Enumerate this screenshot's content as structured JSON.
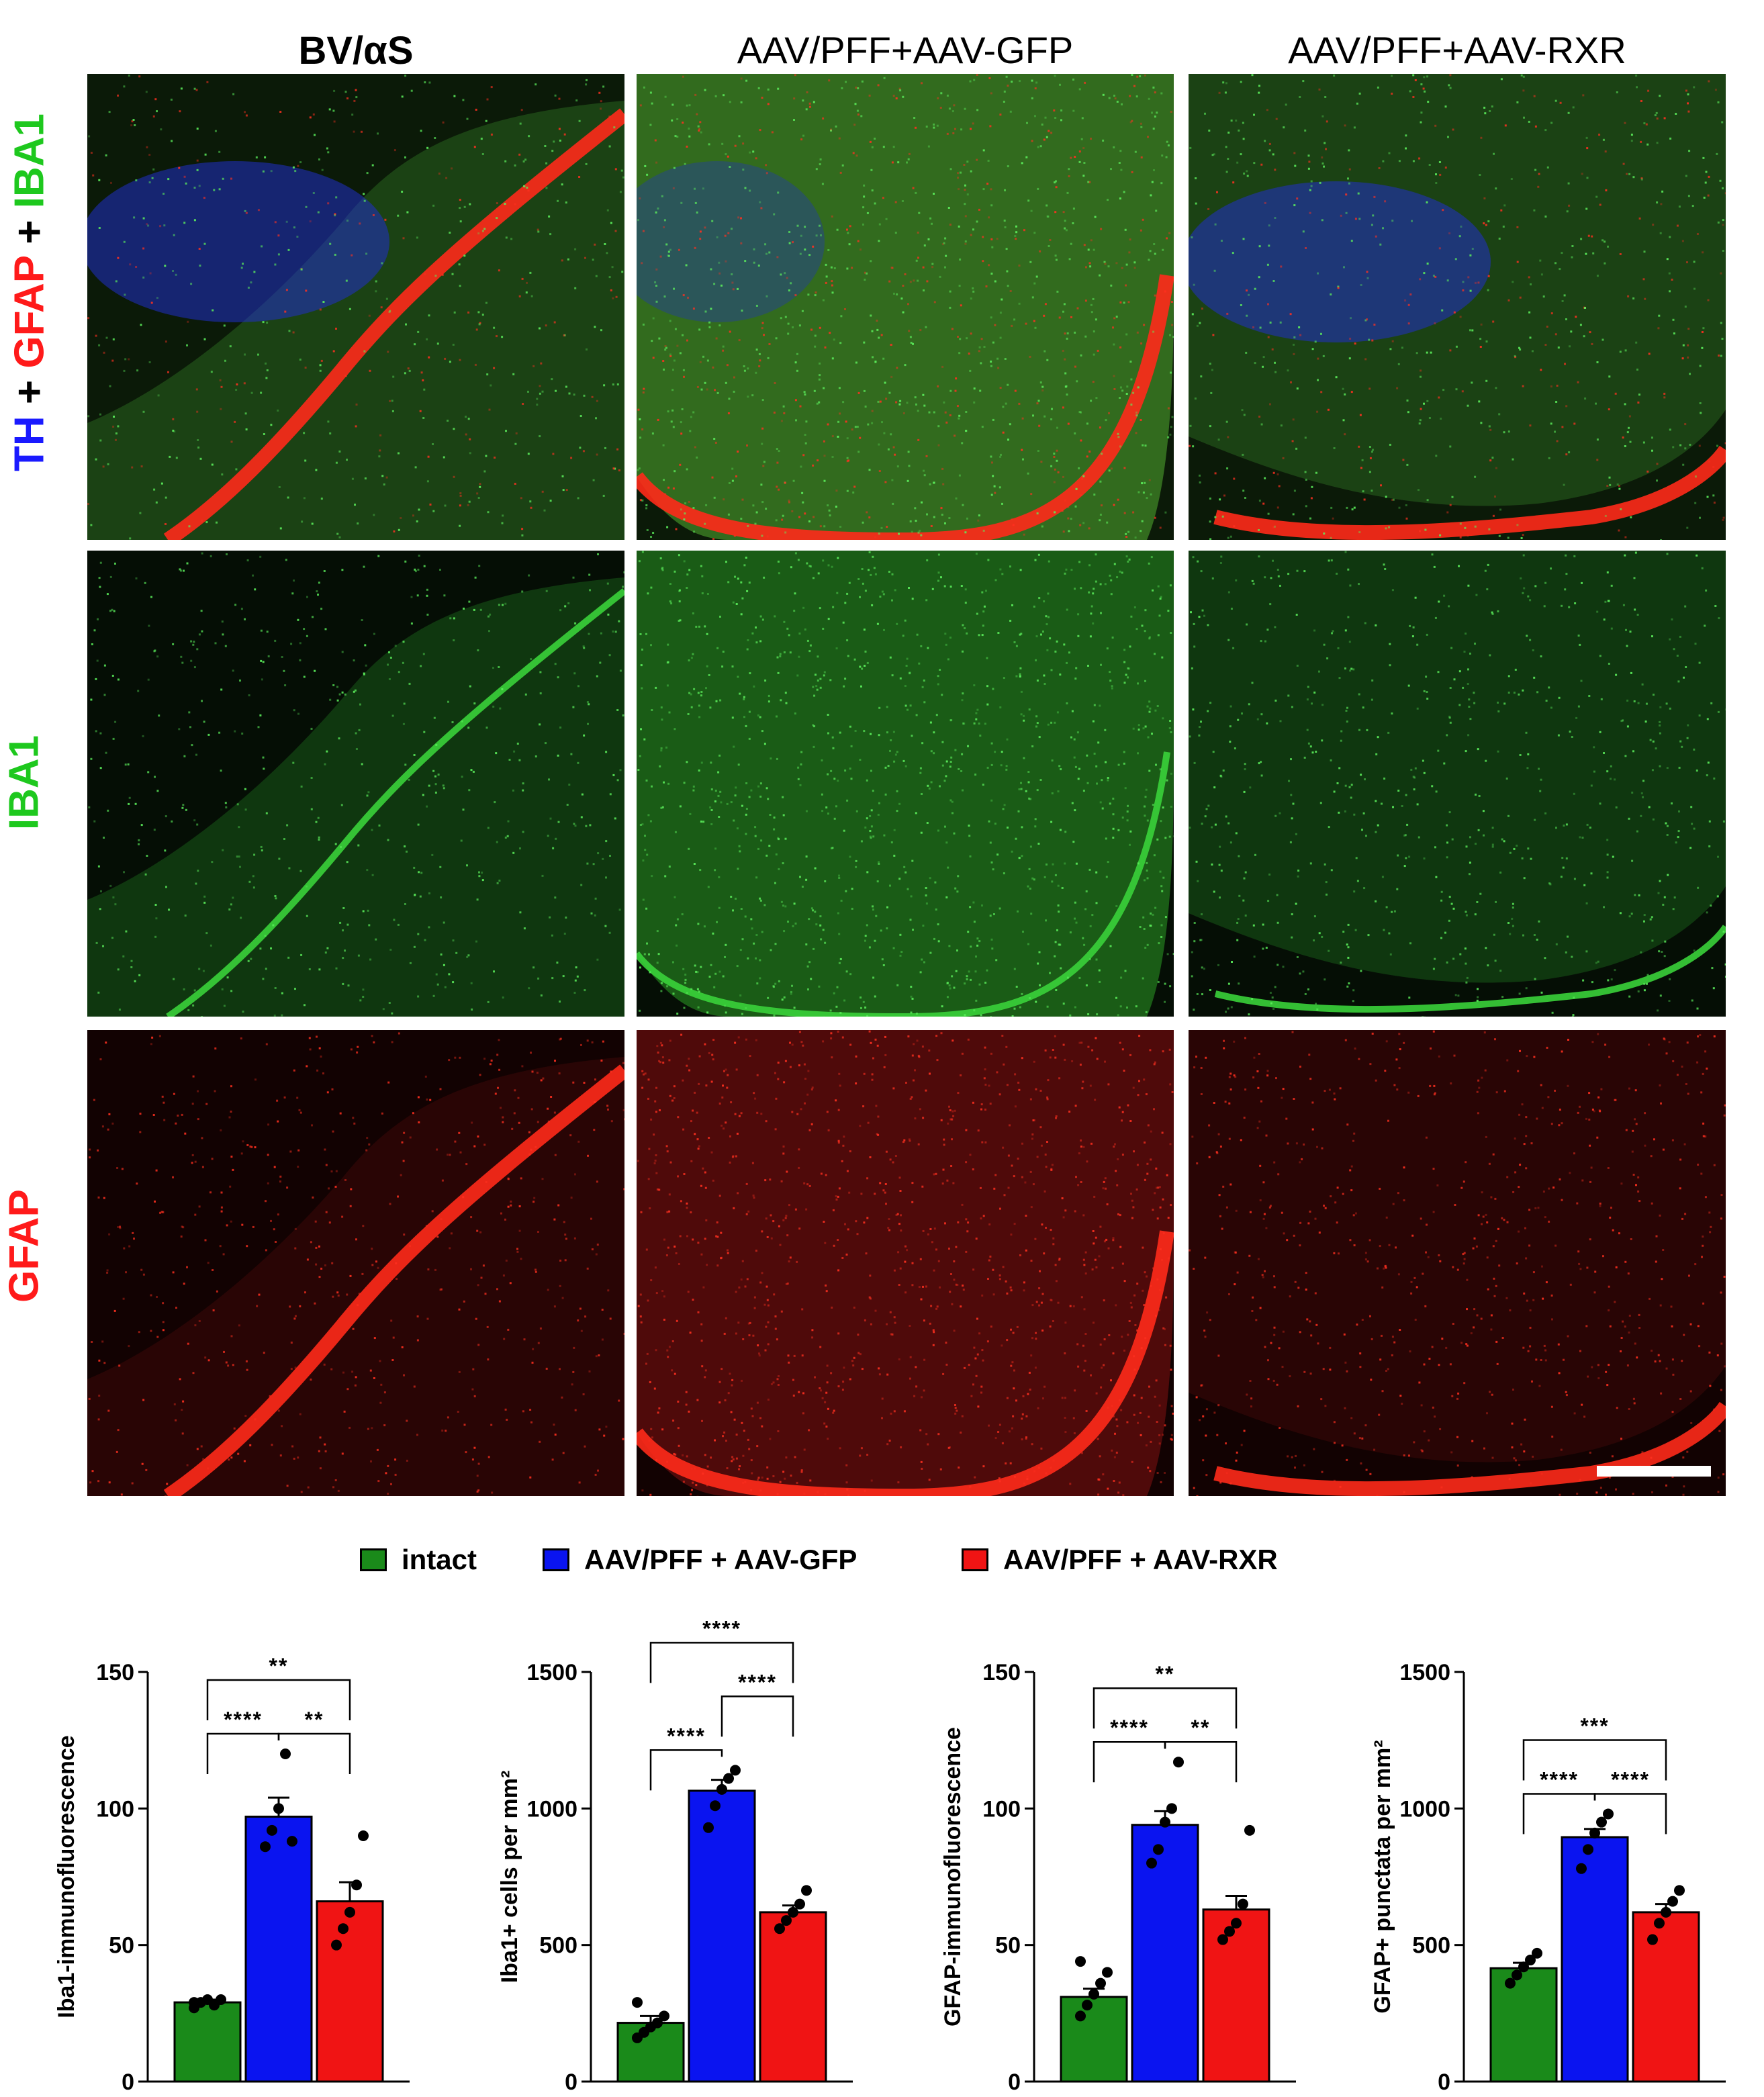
{
  "figure": {
    "columns": [
      "BV/αS",
      "AAV/PFF+AAV-GFP",
      "AAV/PFF+AAV-RXR"
    ],
    "rows": [
      {
        "label_parts": [
          {
            "text": "TH",
            "color": "#1a1aff"
          },
          {
            "text": " + ",
            "color": "#000000"
          },
          {
            "text": "GFAP",
            "color": "#ff1a1a"
          },
          {
            "text": " + ",
            "color": "#000000"
          },
          {
            "text": "IBA1",
            "color": "#1ec81e"
          }
        ]
      },
      {
        "label_parts": [
          {
            "text": "IBA1",
            "color": "#1ec81e"
          }
        ]
      },
      {
        "label_parts": [
          {
            "text": "GFAP",
            "color": "#ff1a1a"
          }
        ]
      }
    ],
    "legend": [
      {
        "label": "intact",
        "color": "#1a8a1a"
      },
      {
        "label": "AAV/PFF + AAV-GFP",
        "color": "#0a14f0"
      },
      {
        "label": "AAV/PFF + AAV-RXR",
        "color": "#f01414"
      }
    ]
  },
  "chart_data": [
    {
      "type": "bar",
      "ylabel": "Iba1-immunofluorescence",
      "ylim": [
        0,
        150
      ],
      "yticks": [
        0,
        50,
        100,
        150
      ],
      "categories": [
        "intact",
        "AAV/PFF + AAV-GFP",
        "AAV/PFF + AAV-RXR"
      ],
      "values": [
        29,
        97,
        66
      ],
      "sem": [
        1,
        7,
        7
      ],
      "points": [
        [
          27,
          29,
          30,
          28,
          30,
          29
        ],
        [
          86,
          92,
          100,
          120,
          88
        ],
        [
          50,
          56,
          62,
          72,
          90
        ]
      ],
      "comparisons": [
        {
          "from": 0,
          "to": 1,
          "stars": "****",
          "level": 1
        },
        {
          "from": 1,
          "to": 2,
          "stars": "**",
          "level": 1
        },
        {
          "from": 0,
          "to": 2,
          "stars": "**",
          "level": 2
        }
      ]
    },
    {
      "type": "bar",
      "ylabel": "Iba1+ cells per mm²",
      "ylim": [
        0,
        1500
      ],
      "yticks": [
        0,
        500,
        1000,
        1500
      ],
      "categories": [
        "intact",
        "AAV/PFF + AAV-GFP",
        "AAV/PFF + AAV-RXR"
      ],
      "values": [
        215,
        1065,
        620
      ],
      "sem": [
        25,
        40,
        25
      ],
      "points": [
        [
          160,
          180,
          200,
          215,
          240,
          290
        ],
        [
          930,
          1010,
          1070,
          1110,
          1140
        ],
        [
          560,
          590,
          620,
          650,
          700
        ]
      ],
      "comparisons": [
        {
          "from": 0,
          "to": 1,
          "stars": "****",
          "level": 1
        },
        {
          "from": 1,
          "to": 2,
          "stars": "****",
          "level": 2
        },
        {
          "from": 0,
          "to": 2,
          "stars": "****",
          "level": 3
        }
      ]
    },
    {
      "type": "bar",
      "ylabel": "GFAP-immunofluorescence",
      "ylim": [
        0,
        150
      ],
      "yticks": [
        0,
        50,
        100,
        150
      ],
      "categories": [
        "intact",
        "AAV/PFF + AAV-GFP",
        "AAV/PFF + AAV-RXR"
      ],
      "values": [
        31,
        94,
        63
      ],
      "sem": [
        3,
        5,
        5
      ],
      "points": [
        [
          24,
          28,
          32,
          36,
          40,
          44
        ],
        [
          80,
          85,
          95,
          100,
          117
        ],
        [
          52,
          55,
          58,
          65,
          92
        ]
      ],
      "comparisons": [
        {
          "from": 0,
          "to": 1,
          "stars": "****",
          "level": 1
        },
        {
          "from": 1,
          "to": 2,
          "stars": "**",
          "level": 1
        },
        {
          "from": 0,
          "to": 2,
          "stars": "**",
          "level": 2
        }
      ]
    },
    {
      "type": "bar",
      "ylabel": "GFAP+ punctata per mm²",
      "ylim": [
        0,
        1500
      ],
      "yticks": [
        0,
        500,
        1000,
        1500
      ],
      "categories": [
        "intact",
        "AAV/PFF + AAV-GFP",
        "AAV/PFF + AAV-RXR"
      ],
      "values": [
        415,
        895,
        620
      ],
      "sem": [
        20,
        30,
        30
      ],
      "points": [
        [
          360,
          390,
          420,
          445,
          470
        ],
        [
          780,
          850,
          910,
          950,
          980
        ],
        [
          520,
          580,
          620,
          660,
          700
        ]
      ],
      "comparisons": [
        {
          "from": 0,
          "to": 1,
          "stars": "****",
          "level": 1
        },
        {
          "from": 1,
          "to": 2,
          "stars": "****",
          "level": 1
        },
        {
          "from": 0,
          "to": 2,
          "stars": "***",
          "level": 2
        }
      ]
    }
  ]
}
